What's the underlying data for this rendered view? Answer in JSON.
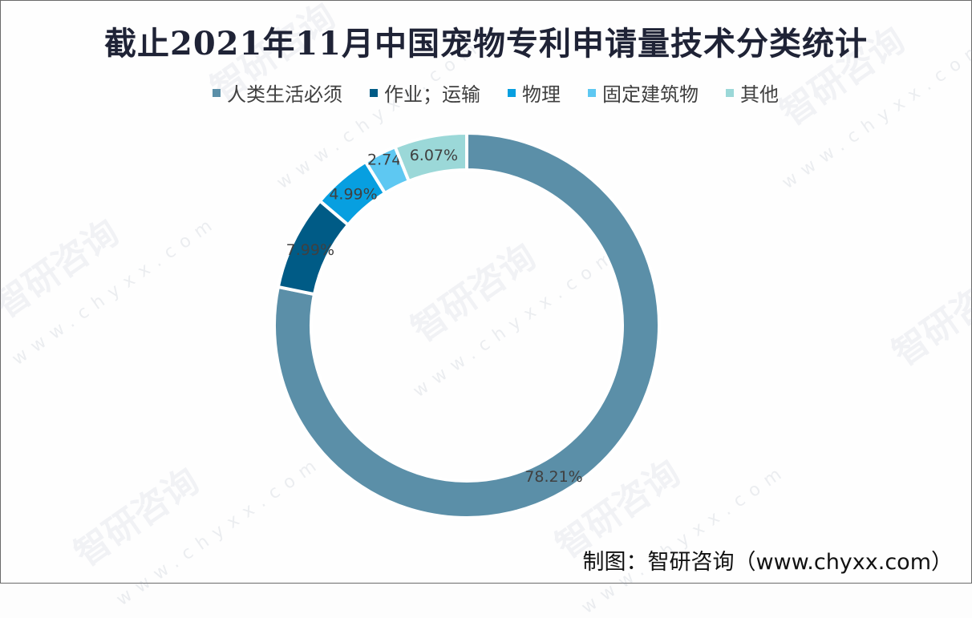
{
  "title": "截止2021年11月中国宠物专利申请量技术分类统计",
  "source": "制图：智研咨询（www.chyxx.com）",
  "watermark": {
    "text": "智研咨询",
    "url": "www.chyxx.com"
  },
  "legend": [
    {
      "label": "人类生活必须",
      "color": "#5b8fa8"
    },
    {
      "label": "作业；运输",
      "color": "#005b86"
    },
    {
      "label": "物理",
      "color": "#079fe0"
    },
    {
      "label": "固定建筑物",
      "color": "#5ec8f2"
    },
    {
      "label": "其他",
      "color": "#9bd8d8"
    }
  ],
  "chart_data": {
    "type": "pie",
    "subtype": "donut",
    "title": "截止2021年11月中国宠物专利申请量技术分类统计",
    "categories": [
      "人类生活必须",
      "作业；运输",
      "物理",
      "固定建筑物",
      "其他"
    ],
    "values": [
      78.21,
      7.99,
      4.99,
      2.74,
      6.07
    ],
    "unit": "%",
    "labels": [
      "78.21%",
      "7.99%",
      "4.99%",
      "2.74%",
      "6.07%"
    ],
    "colors": [
      "#5b8fa8",
      "#005b86",
      "#079fe0",
      "#5ec8f2",
      "#9bd8d8"
    ],
    "start_angle": "12 o'clock, clockwise",
    "legend_position": "top"
  }
}
